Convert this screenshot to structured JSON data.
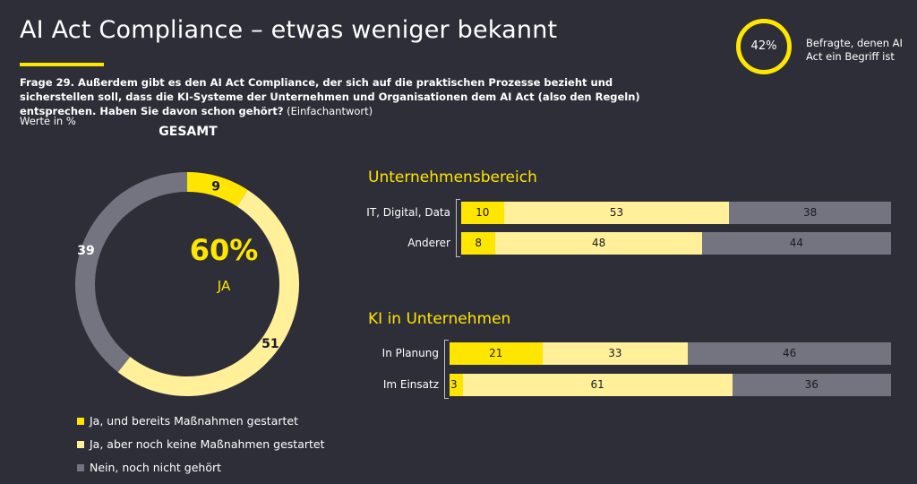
{
  "header": {
    "title": "AI Act Compliance – etwas weniger bekannt",
    "question_bold": "Frage 29. Außerdem gibt es den AI Act Compliance, der sich auf die praktischen Prozesse bezieht und sicherstellen soll, dass die KI-Systeme der Unternehmen und Organisationen dem AI Act (also den Regeln) entsprechen. Haben Sie davon schon gehört?",
    "question_note": "(Einfachantwort)",
    "unit": "Werte in %"
  },
  "badge": {
    "value": "42%",
    "text": "Befragte, denen AI Act ein Begriff ist"
  },
  "colors": {
    "background": "#2e2e38",
    "accent": "#ffe600",
    "ja_ohne": "#fff099",
    "nein": "#747480"
  },
  "chart_data": [
    {
      "type": "pie",
      "title": "GESAMT",
      "center_value": "60%",
      "center_label": "JA",
      "slices": [
        {
          "label": "Ja, und bereits Maßnahmen gestartet",
          "value": 9
        },
        {
          "label": "Ja, aber noch keine Maßnahmen gestartet",
          "value": 51
        },
        {
          "label": "Nein, noch nicht gehört",
          "value": 39
        }
      ]
    },
    {
      "type": "bar",
      "orientation": "horizontal",
      "stacked": true,
      "title": "Unternehmensbereich",
      "categories": [
        "IT, Digital, Data",
        "Anderer"
      ],
      "series": [
        {
          "name": "Ja, und bereits Maßnahmen gestartet",
          "values": [
            10,
            8
          ]
        },
        {
          "name": "Ja, aber noch keine Maßnahmen gestartet",
          "values": [
            53,
            48
          ]
        },
        {
          "name": "Nein, noch nicht gehört",
          "values": [
            38,
            44
          ]
        }
      ]
    },
    {
      "type": "bar",
      "orientation": "horizontal",
      "stacked": true,
      "title": "KI in Unternehmen",
      "categories": [
        "In Planung",
        "Im Einsatz"
      ],
      "series": [
        {
          "name": "Ja, und bereits Maßnahmen gestartet",
          "values": [
            21,
            3
          ]
        },
        {
          "name": "Ja, aber noch keine Maßnahmen gestartet",
          "values": [
            33,
            61
          ]
        },
        {
          "name": "Nein, noch nicht gehört",
          "values": [
            46,
            36
          ]
        }
      ]
    }
  ]
}
